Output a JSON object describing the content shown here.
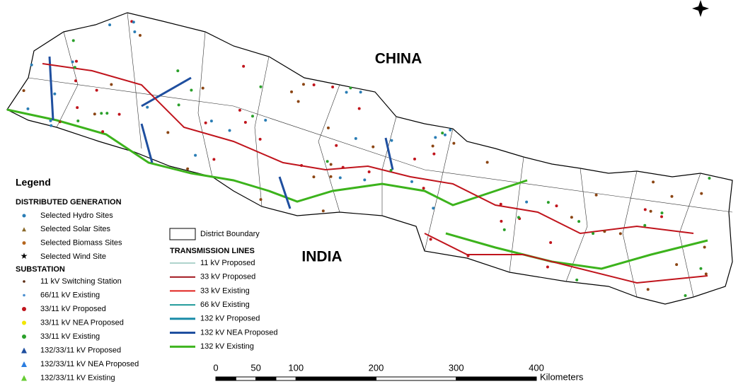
{
  "labels": {
    "china": "CHINA",
    "india": "INDIA"
  },
  "legend": {
    "title": "Legend",
    "distributed_generation": {
      "title": "DISTRIBUTED GENERATION",
      "items": [
        "Selected Hydro Sites",
        "Selected Solar Sites",
        "Selected Biomass Sites",
        "Selected Wind Site"
      ]
    },
    "substation": {
      "title": "SUBSTATION",
      "items": [
        "11 kV Switching Station",
        "66/11 kV Existing",
        "33/11 kV Proposed",
        "33/11 kV NEA Proposed",
        "33/11 kV Existing",
        "132/33/11 kV Proposed",
        "132/33/11 kV NEA Proposed",
        "132/33/11 kV Existing"
      ]
    },
    "district_boundary": "District Boundary",
    "transmission_lines": {
      "title": "TRANSMISSION LINES",
      "items": [
        "11 kV Proposed",
        "33 kV Proposed",
        "33 kV Existing",
        "66 kV Existing",
        "132 kV Proposed",
        "132 kV NEA Proposed",
        "132 kV Existing"
      ]
    }
  },
  "scale": {
    "ticks": [
      0,
      50,
      100,
      200,
      300,
      400
    ],
    "unit": "Kilometers"
  }
}
